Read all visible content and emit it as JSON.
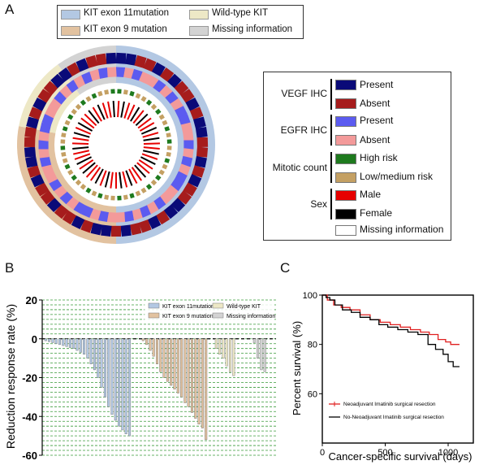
{
  "panels": {
    "a": "A",
    "b": "B",
    "c": "C"
  },
  "colors": {
    "exon11": "#b3c8e3",
    "exon9": "#e2c2a0",
    "wildtype": "#ede8c6",
    "missing": "#d3d3d3",
    "present_vegf": "#0a0a78",
    "absent_vegf": "#a61c1c",
    "present_egfr": "#5b5bf0",
    "absent_egfr": "#f39a9a",
    "high_risk": "#1e7a1e",
    "low_risk": "#c4a063",
    "male": "#e60000",
    "female": "#000000",
    "neo": "#e02020",
    "noneo": "#000000"
  },
  "panel_a": {
    "legend": {
      "exon11": "KIT exon 11mutation",
      "exon9": "KIT exon 9 mutation",
      "wildtype": "Wild-type KIT",
      "missing": "Missing information"
    },
    "right_legend": {
      "vegf": "VEGF IHC",
      "egfr": "EGFR IHC",
      "mitotic": "Mitotic count",
      "sex": "Sex",
      "present": "Present",
      "absent": "Absent",
      "present2": "Present",
      "absent2": "Absent",
      "high": "High risk",
      "low": "Low/medium risk",
      "male": "Male",
      "female": "Female",
      "missing": "Missing information"
    },
    "ring_sectors": [
      {
        "group": "exon11",
        "fraction": 0.5
      },
      {
        "group": "exon9",
        "fraction": 0.28
      },
      {
        "group": "wildtype",
        "fraction": 0.12
      },
      {
        "group": "missing",
        "fraction": 0.1
      }
    ],
    "vegf_ring": "PPAAPAPAAPAPPAAPAPAAPPAPAAPAPPAPAAPAAPAPPAAPAPAAPPAPAAP",
    "egfr_ring": "EaEaaEaEaEEaaEaEaEEaaEaEaEaaEaEEaEaEaaEaEaEEaaEaEaEaEa",
    "mitotic_ring": "HLHLLHLHLLHLHLLHLLHLHLLHLHLLHLHLLHLHLLHLLHLHLLHLHLLH",
    "sex_ring": "MFMMFMFMMFMFMMFMFMMFMMFMFMMFMFMMFMFMMFMMFMFMMFMFMMF"
  },
  "panel_b": {
    "legend": {
      "exon11": "KIT exon 11mutation",
      "exon9": "KIT exon 9 mutation",
      "wildtype": "Wild-type KIT",
      "missing": "Missing information"
    }
  },
  "chart_data": [
    {
      "type": "bar",
      "title": "",
      "xlabel": "",
      "ylabel": "Reduction response rate (%)",
      "ylim": [
        -60,
        20
      ],
      "yticks": [
        "20",
        "0",
        "-20",
        "-40",
        "-60"
      ],
      "grid": true,
      "series": [
        {
          "name": "KIT exon 11mutation",
          "values": [
            -1,
            -1.5,
            -2,
            -2.5,
            -3,
            -3.5,
            -4,
            -4.5,
            -5,
            -6,
            -7,
            -8,
            -10,
            -13,
            -16,
            -20,
            -25,
            -30,
            -35,
            -39,
            -42,
            -45,
            -47,
            -49,
            -50
          ]
        },
        {
          "name": "KIT exon 9 mutation",
          "values": [
            -1,
            -3,
            -6,
            -9,
            -13,
            -17,
            -20,
            -22,
            -24,
            -26,
            -28,
            -30,
            -33,
            -35,
            -38,
            -41,
            -44,
            -46,
            -52
          ]
        },
        {
          "name": "Wild-type KIT",
          "values": [
            -5,
            -8,
            -10,
            -14,
            -17,
            -19
          ]
        },
        {
          "name": "Missing information",
          "values": [
            -2,
            -10,
            -16,
            -17
          ]
        }
      ]
    },
    {
      "type": "line",
      "title": "",
      "xlabel": "Cancer-specific survival (days)",
      "ylabel": "Percent survival (%)",
      "xlim": [
        0,
        1200
      ],
      "ylim": [
        40,
        100
      ],
      "xticks": [
        "0",
        "500",
        "1000"
      ],
      "yticks": [
        "100",
        "80",
        "60"
      ],
      "series": [
        {
          "name": "Neoadjuvant Imatinib surgical resection",
          "x": [
            0,
            40,
            90,
            150,
            220,
            300,
            380,
            460,
            540,
            620,
            700,
            780,
            850,
            920,
            980,
            1020,
            1090
          ],
          "y": [
            100,
            98,
            96,
            95,
            94,
            92,
            90,
            89,
            88,
            87,
            86,
            85,
            84,
            82,
            81,
            80,
            80
          ]
        },
        {
          "name": "No-Neoadjuvant Imatinib surgical resection",
          "x": [
            0,
            30,
            60,
            100,
            160,
            230,
            300,
            380,
            450,
            520,
            600,
            680,
            760,
            840,
            900,
            960,
            1000,
            1040,
            1090
          ],
          "y": [
            100,
            99,
            98,
            96,
            94,
            93,
            91,
            90,
            88,
            87,
            86,
            85,
            84,
            80,
            78,
            76,
            73,
            71,
            71
          ]
        }
      ]
    }
  ]
}
